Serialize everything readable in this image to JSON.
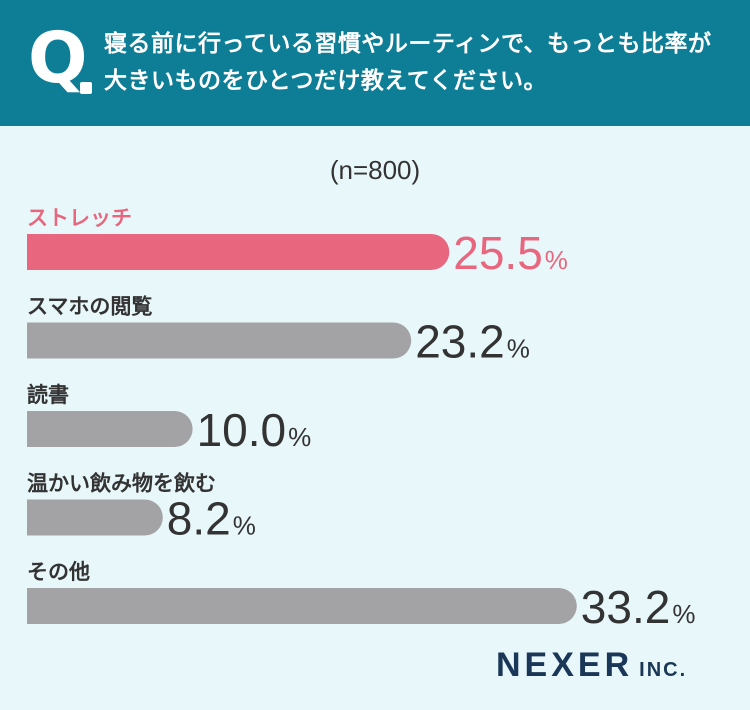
{
  "header": {
    "q_mark": "Q",
    "question": "寝る前に行っている習慣やルーティンで、もっとも比率が大きいものをひとつだけ教えてください。"
  },
  "sample_label": "(n=800)",
  "brand": {
    "name": "NEXER",
    "suffix": "INC."
  },
  "colors": {
    "header_bg": "#0e7e96",
    "highlight": "#e8677f",
    "bar": "#a3a3a6",
    "text": "#333333"
  },
  "chart_data": {
    "type": "bar",
    "orientation": "horizontal",
    "title": "",
    "xlabel": "",
    "ylabel": "",
    "unit": "%",
    "categories": [
      "ストレッチ",
      "スマホの閲覧",
      "読書",
      "温かい飲み物を飲む",
      "その他"
    ],
    "values": [
      25.5,
      23.2,
      10.0,
      8.2,
      33.2
    ],
    "value_labels": [
      "25.5",
      "23.2",
      "10.0",
      "8.2",
      "33.2"
    ],
    "highlight_index": 0,
    "grid": false,
    "legend": "none"
  }
}
